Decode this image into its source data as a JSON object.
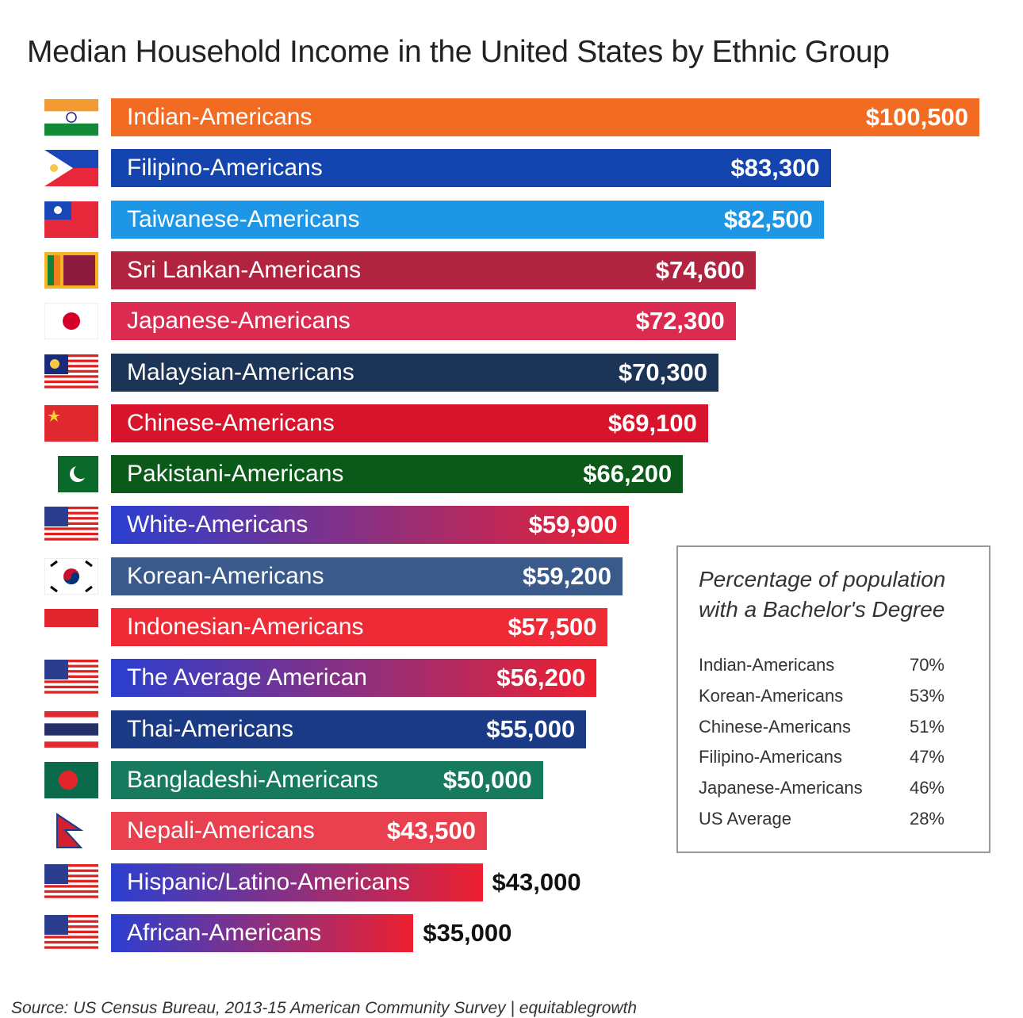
{
  "chart_data": {
    "type": "bar",
    "orientation": "horizontal",
    "title": "Median Household Income in the United States  by Ethnic Group",
    "source": "Source: US Census Bureau, 2013-15 American Community Survey | equitablegrowth",
    "xlim": [
      0,
      100500
    ],
    "grid": false,
    "categories": [
      "Indian-Americans",
      "Filipino-Americans",
      "Taiwanese-Americans",
      "Sri Lankan-Americans",
      "Japanese-Americans",
      "Malaysian-Americans",
      "Chinese-Americans",
      "Pakistani-Americans",
      "White-Americans",
      "Korean-Americans",
      "Indonesian-Americans",
      "The Average American",
      "Thai-Americans",
      "Bangladeshi-Americans",
      "Nepali-Americans",
      "Hispanic/Latino-Americans",
      "African-Americans"
    ],
    "values": [
      100500,
      83300,
      82500,
      74600,
      72300,
      70300,
      69100,
      66200,
      59900,
      59200,
      57500,
      56200,
      55000,
      50000,
      43500,
      43000,
      35000
    ],
    "value_labels": [
      "$100,500",
      "$83,300",
      "$82,500",
      "$74,600",
      "$72,300",
      "$70,300",
      "$69,100",
      "$66,200",
      "$59,900",
      "$59,200",
      "$57,500",
      "$56,200",
      "$55,000",
      "$50,000",
      "$43,500",
      "$43,000",
      "$35,000"
    ],
    "flags": [
      "india",
      "philippines",
      "taiwan",
      "sri-lanka",
      "japan",
      "malaysia",
      "china",
      "pakistan",
      "usa",
      "south-korea",
      "indonesia",
      "usa",
      "thailand",
      "bangladesh",
      "nepal",
      "usa",
      "usa"
    ],
    "colors": [
      "#f26b22",
      "#1445ae",
      "#1e96e6",
      "#b0243f",
      "#dc2b50",
      "#1c3557",
      "#d7142b",
      "#0b5a1a",
      "gradient",
      "#3a5a8c",
      "#ee2a36",
      "gradient",
      "#1a3a86",
      "#177a5e",
      "#e8404f",
      "gradient",
      "gradient"
    ],
    "gradient_colors": [
      "#2a3fd0",
      "#ee2030"
    ],
    "inset": {
      "title": "Percentage of population with a Bachelor's Degree",
      "rows": [
        {
          "label": "Indian-Americans",
          "value": "70%"
        },
        {
          "label": "Korean-Americans",
          "value": "53%"
        },
        {
          "label": "Chinese-Americans",
          "value": "51%"
        },
        {
          "label": "Filipino-Americans",
          "value": "47%"
        },
        {
          "label": "Japanese-Americans",
          "value": "46%"
        },
        {
          "label": "US Average",
          "value": "28%"
        }
      ]
    }
  }
}
